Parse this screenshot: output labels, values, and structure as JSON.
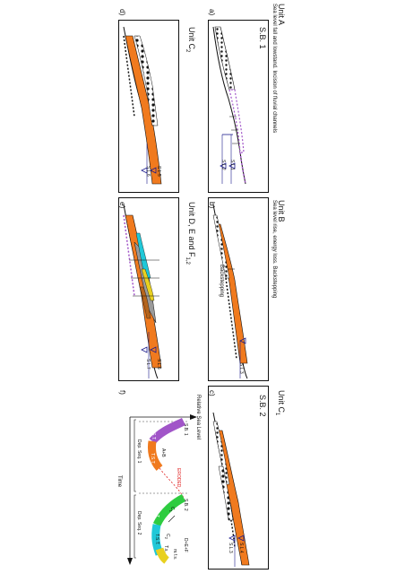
{
  "panels": {
    "a": {
      "unit_title": "Unit A",
      "subtitle": "Sea level fall and lowstand. Incision of fluvial channels",
      "boundary": "S.B. 1",
      "letter": "a)",
      "sl_labels": [
        "S.L.1",
        "S.L.2"
      ]
    },
    "b": {
      "unit_title": "Unit B",
      "subtitle": "Sea level rise, energy loss. Backstepping",
      "letter": "b)",
      "annotation": "Backstepping",
      "sl_labels": [
        "S.L.3"
      ]
    },
    "c": {
      "unit_title": "Unit C",
      "unit_sub": "1",
      "boundary": "S.B. 2",
      "letter": "c)",
      "sl_labels": [
        "S.L.4",
        "S.L.3"
      ]
    },
    "d": {
      "unit_title": "Unit C",
      "unit_sub": "2",
      "letter": "d)",
      "sl_labels": [
        "S.L.5",
        "S.L.6"
      ]
    },
    "e": {
      "unit_title": "Unit D, E and F",
      "unit_sub": "1,2",
      "letter": "e)",
      "sl_labels": [
        "S.L.6",
        "S.L.7"
      ]
    },
    "f": {
      "letter": "f)",
      "y_axis": "Relative Sea Level",
      "x_axis": "Time",
      "seq1": "Dep. Seq. 1",
      "seq2": "Dep. Seq. 2",
      "sb1": "S.B. 1",
      "sb2": "S.B. 2",
      "ab": "A+B",
      "c1": "C",
      "c1_sub": "1",
      "c2": "C",
      "c2_sub": "2",
      "def": "D+E+F",
      "l_s_t_1": "L.S.T.",
      "t_s_t_1": "T.S.T.",
      "eroded": "ERODED",
      "l_s_t_2": "L.S.T.",
      "t_s_t_2": "T.S.T.",
      "mfs": "m.f.s.",
      "ts": "T.s."
    }
  },
  "colors": {
    "orange": "#f07a1e",
    "dark_orange": "#d8621a",
    "purple": "#a155c8",
    "green": "#2ecc40",
    "cyan": "#20c8d8",
    "brown": "#b5651d",
    "gray": "#9a9a9a",
    "yellow": "#e8d020",
    "navy": "#1a1a8c",
    "red": "#e02020"
  }
}
